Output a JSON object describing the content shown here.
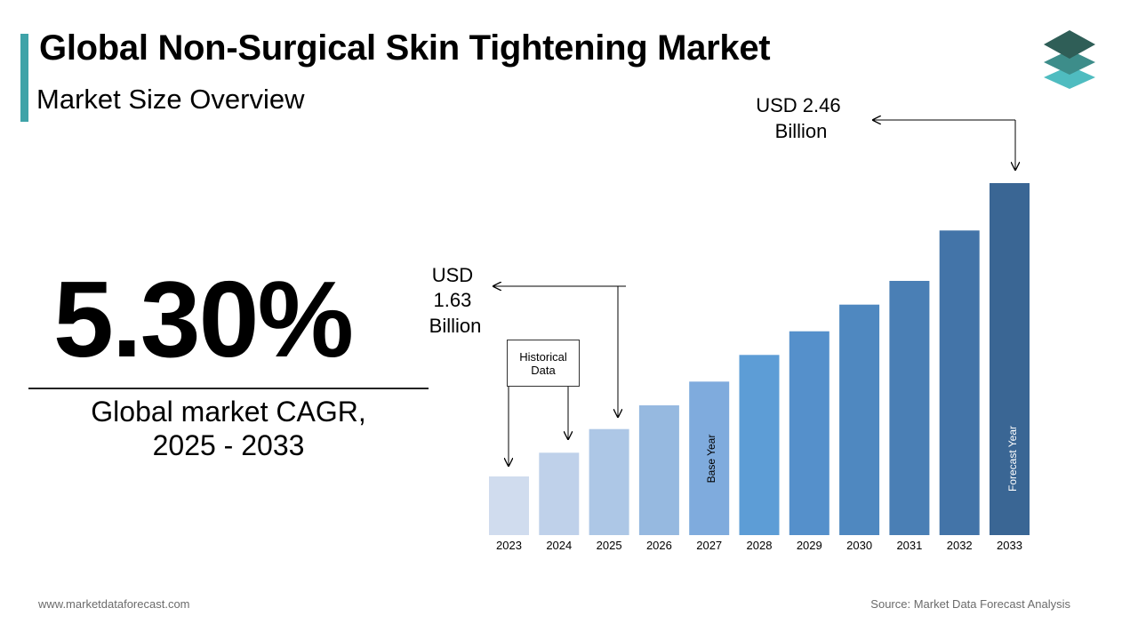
{
  "header": {
    "title": "Global Non-Surgical Skin Tightening Market",
    "subtitle": "Market Size Overview",
    "accent_color": "#3fa3a8",
    "logo_icon": "stacked-layers-icon"
  },
  "kpi": {
    "value": "5.30%",
    "label_line1": "Global market CAGR,",
    "label_line2": "2025 - 2033"
  },
  "annotations": {
    "start_value_lines": [
      "USD",
      "1.63",
      "Billion"
    ],
    "end_value_lines": [
      "USD 2.46",
      "Billion"
    ],
    "historical_box_lines": [
      "Historical",
      "Data"
    ],
    "base_year_label": "Base Year",
    "forecast_year_label": "Forecast Year"
  },
  "chart_data": {
    "type": "bar",
    "categories": [
      "2023",
      "2024",
      "2025",
      "2026",
      "2027",
      "2028",
      "2029",
      "2030",
      "2031",
      "2032",
      "2033"
    ],
    "values": [
      1.47,
      1.55,
      1.63,
      1.71,
      1.79,
      1.88,
      1.96,
      2.05,
      2.13,
      2.3,
      2.46
    ],
    "colors": [
      "#d0dcee",
      "#bfd1ea",
      "#adc7e6",
      "#96b9e0",
      "#7fabdd",
      "#5d9dd6",
      "#5590cb",
      "#4f88c0",
      "#4a7fb5",
      "#4374a8",
      "#3a6694"
    ],
    "unit": "USD Billion",
    "base_year": "2027",
    "forecast_year": "2033"
  },
  "footer": {
    "website": "www.marketdataforecast.com",
    "source": "Source: Market Data Forecast Analysis"
  }
}
